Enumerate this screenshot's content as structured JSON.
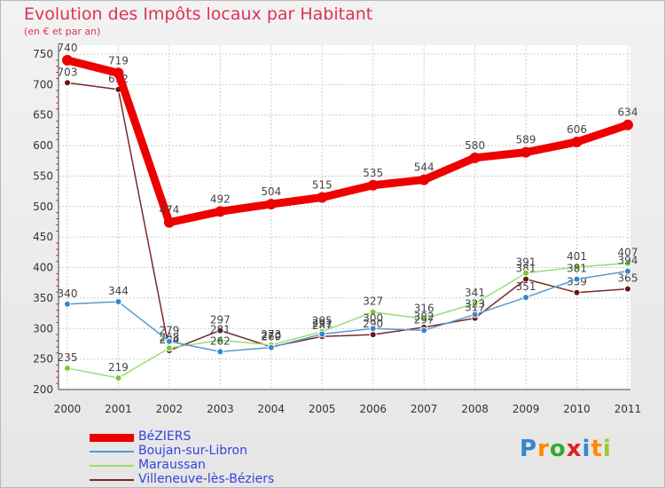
{
  "chart_data": {
    "type": "line",
    "title": "Evolution des Impôts locaux par Habitant",
    "subtitle": "(en € et par an)",
    "x": [
      "2000",
      "2001",
      "2002",
      "2003",
      "2004",
      "2005",
      "2006",
      "2007",
      "2008",
      "2009",
      "2010",
      "2011"
    ],
    "ylim": [
      200,
      750
    ],
    "yticks": [
      200,
      250,
      300,
      350,
      400,
      450,
      500,
      550,
      600,
      650,
      700,
      750
    ],
    "series": [
      {
        "name": "Villeneuve-lès-Béziers",
        "color": "#7a2828",
        "marker": "#6b1515",
        "values": [
          703,
          692,
          264,
          297,
          270,
          287,
          290,
          302,
          317,
          381,
          359,
          365
        ],
        "labels": [
          "703",
          "692",
          "264",
          "297",
          "270",
          "287",
          "290",
          "302",
          "317",
          "381",
          "359",
          "365"
        ]
      },
      {
        "name": "Maraussan",
        "color": "#99dd77",
        "marker": "#77cc33",
        "values": [
          235,
          219,
          268,
          281,
          273,
          295,
          327,
          316,
          341,
          391,
          401,
          407
        ],
        "labels": [
          "235",
          "219",
          "268",
          "281",
          "273",
          "295",
          "327",
          "316",
          "341",
          "391",
          "401",
          "407"
        ]
      },
      {
        "name": "Boujan-sur-Libron",
        "color": "#5599cc",
        "marker": "#3388cc",
        "values": [
          340,
          344,
          279,
          262,
          269,
          291,
          300,
          297,
          323,
          351,
          381,
          394
        ],
        "labels": [
          "340",
          "344",
          "279",
          "262",
          "269",
          "291",
          "300",
          "297",
          "323",
          "351",
          "381",
          "394"
        ]
      },
      {
        "name": "BéZIERS",
        "color": "#ee0000",
        "marker": "#ee0000",
        "values": [
          740,
          719,
          474,
          492,
          504,
          515,
          535,
          544,
          580,
          589,
          606,
          634
        ],
        "labels": [
          "740",
          "719",
          "474",
          "492",
          "504",
          "515",
          "535",
          "544",
          "580",
          "589",
          "606",
          "634"
        ]
      }
    ]
  },
  "legend": [
    {
      "name": "BéZIERS",
      "color": "#ee0000",
      "width": 9
    },
    {
      "name": "Boujan-sur-Libron",
      "color": "#5599cc",
      "width": 2
    },
    {
      "name": "Maraussan",
      "color": "#99dd77",
      "width": 2
    },
    {
      "name": "Villeneuve-lès-Béziers",
      "color": "#7a2828",
      "width": 2
    }
  ],
  "logo": {
    "letters": [
      "P",
      "r",
      "o",
      "x",
      "i",
      "t",
      "i"
    ],
    "colors": [
      "#3388cc",
      "#ff8800",
      "#33aa33",
      "#dd2222",
      "#3388cc",
      "#ff8800",
      "#99cc33"
    ]
  }
}
